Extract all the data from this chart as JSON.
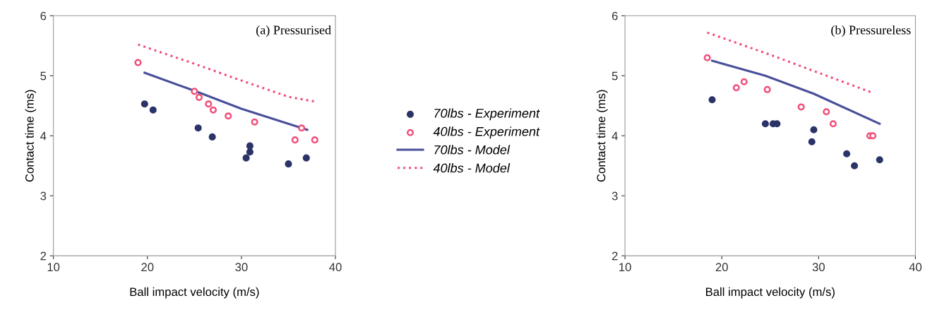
{
  "chart_data": [
    {
      "type": "scatter",
      "title": "(a) Pressurised",
      "xlabel": "Ball impact velocity (m/s)",
      "ylabel": "Contact time (ms)",
      "xlim": [
        10,
        40
      ],
      "ylim": [
        2,
        6
      ],
      "xticks": [
        10,
        20,
        30,
        40
      ],
      "yticks": [
        2,
        3,
        4,
        5,
        6
      ],
      "grid": false,
      "legend": "right",
      "series": [
        {
          "name": "70lbs - Experiment",
          "marker": "circle",
          "color": "#2b3468",
          "x": [
            19.7,
            20.6,
            25.4,
            26.9,
            30.5,
            30.9,
            30.9,
            35,
            36.9
          ],
          "values": [
            4.53,
            4.43,
            4.13,
            3.98,
            3.63,
            3.73,
            3.83,
            3.53,
            3.63
          ]
        },
        {
          "name": "40lbs - Experiment",
          "marker": "circle",
          "color": "#f0507a",
          "x": [
            19,
            25,
            25.5,
            26.5,
            27,
            28.6,
            31.4,
            35.7,
            36.4,
            37.8
          ],
          "values": [
            5.22,
            4.74,
            4.64,
            4.53,
            4.43,
            4.33,
            4.23,
            3.93,
            4.13,
            3.93
          ]
        },
        {
          "name": "70lbs - Model",
          "type": "line",
          "line_style": "solid",
          "color": "#4a4f9a",
          "x": [
            19.7,
            25,
            30,
            37
          ],
          "values": [
            5.05,
            4.75,
            4.45,
            4.1
          ]
        },
        {
          "name": "40lbs - Model",
          "type": "line",
          "line_style": "dotted",
          "color": "#f0507a",
          "x": [
            19,
            25,
            30,
            35,
            37.8
          ],
          "values": [
            5.52,
            5.2,
            4.92,
            4.65,
            4.57
          ]
        }
      ]
    },
    {
      "type": "scatter",
      "title": "(b) Pressureless",
      "xlabel": "Ball impact velocity (m/s)",
      "ylabel": "Contact time (ms)",
      "xlim": [
        10,
        40
      ],
      "ylim": [
        2,
        6
      ],
      "xticks": [
        10,
        20,
        30,
        40
      ],
      "yticks": [
        2,
        3,
        4,
        5,
        6
      ],
      "grid": false,
      "series": [
        {
          "marker": "circle",
          "color": "#2b3468",
          "x": [
            19,
            24.5,
            25.3,
            25.7,
            29.3,
            29.5,
            32.9,
            33.7,
            36.3
          ],
          "values": [
            4.6,
            4.2,
            4.2,
            4.2,
            3.9,
            4.1,
            3.7,
            3.5,
            3.6
          ]
        },
        {
          "marker": "circle",
          "color": "#f0507a",
          "x": [
            18.5,
            21.5,
            22.3,
            24.7,
            28.2,
            30.8,
            31.5,
            35.3,
            35.6
          ],
          "values": [
            5.3,
            4.8,
            4.9,
            4.77,
            4.48,
            4.4,
            4.2,
            4.0,
            4.0
          ]
        },
        {
          "type": "line",
          "line_style": "solid",
          "color": "#4a4f9a",
          "x": [
            19,
            24.5,
            29.5,
            36.3
          ],
          "values": [
            5.25,
            5.0,
            4.7,
            4.2
          ]
        },
        {
          "type": "line",
          "line_style": "dotted",
          "color": "#f0507a",
          "x": [
            18.5,
            25,
            30,
            35.5
          ],
          "values": [
            5.72,
            5.35,
            5.05,
            4.72
          ]
        }
      ]
    }
  ]
}
